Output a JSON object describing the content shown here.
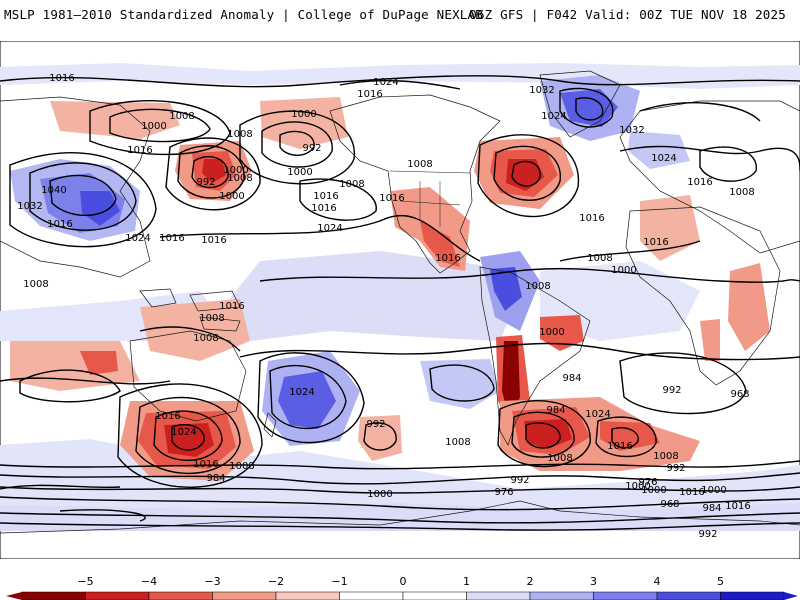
{
  "header": {
    "left_title": "MSLP 1981–2010 Standardized Anomaly | College of DuPage NEXLAB",
    "right_title": "06Z GFS | F042 Valid: 00Z TUE NOV 18 2025"
  },
  "map": {
    "projection": "cylindrical equidistant (global)",
    "basemap": "coastlines and political borders",
    "isobar_labels": [
      "1016",
      "1024",
      "1016",
      "1032",
      "1024",
      "1032",
      "1000",
      "1008",
      "1000",
      "1008",
      "1016",
      "1000",
      "992",
      "1008",
      "992",
      "1000",
      "1016",
      "1008",
      "1016",
      "1000",
      "1024",
      "1008",
      "1016",
      "1040",
      "1032",
      "1024",
      "1016",
      "1016",
      "1016",
      "1024",
      "1016",
      "1016",
      "1008",
      "1008",
      "1008",
      "1016",
      "1016",
      "1016",
      "1008",
      "1000",
      "1008",
      "1008",
      "1000",
      "984",
      "992",
      "968",
      "1024",
      "1016",
      "1008",
      "992",
      "1016",
      "1000",
      "1008",
      "984",
      "976",
      "992",
      "976",
      "1000",
      "968",
      "984",
      "992",
      "1000",
      "1016",
      "1024",
      "1016",
      "1024",
      "1016",
      "1008",
      "984",
      "992",
      "1000",
      "1008"
    ],
    "anomaly_colors": {
      "neg_strong": "#8b0000",
      "neg_4": "#cc2020",
      "neg_3": "#e8584a",
      "neg_2": "#f19a88",
      "neg_1": "#f8c8bc",
      "pos_1": "#dadcf8",
      "pos_2": "#aeb2f2",
      "pos_3": "#7c80ea",
      "pos_4": "#4a4ee0",
      "pos_strong": "#1c1cc8"
    }
  },
  "colorbar": {
    "ticks": [
      "−5",
      "−4",
      "−3",
      "−2",
      "−1",
      "0",
      "1",
      "2",
      "3",
      "4",
      "5"
    ],
    "colors": [
      "#8b0000",
      "#cc2020",
      "#e8584a",
      "#f19a88",
      "#f8c8bc",
      "#ffffff",
      "#ffffff",
      "#dadcf8",
      "#aeb2f2",
      "#7c80ea",
      "#4a4ee0",
      "#1c1cc8"
    ]
  }
}
